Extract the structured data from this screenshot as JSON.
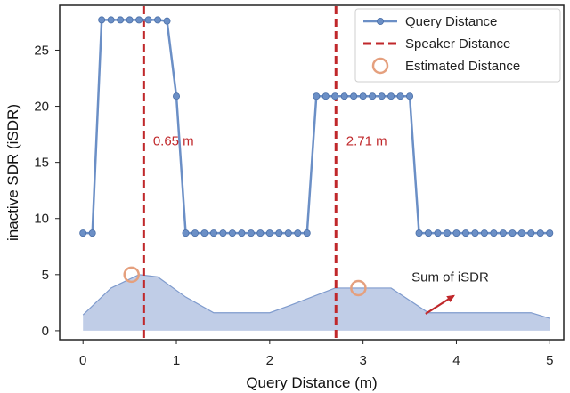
{
  "chart_data": {
    "type": "line",
    "title": "",
    "xlabel": "Query Distance (m)",
    "ylabel": "inactive SDR (iSDR)",
    "xlim": [
      -0.25,
      5.15
    ],
    "ylim": [
      -0.8,
      29
    ],
    "xticks": [
      0,
      1,
      2,
      3,
      4,
      5
    ],
    "yticks": [
      0,
      5,
      10,
      15,
      20,
      25
    ],
    "grid": false,
    "legend_position": "top-right",
    "colors": {
      "query": "#6b8fc6",
      "speaker": "#c0282b",
      "estimated": "#e5a07e",
      "sum_fill": "#b9c8e4",
      "sum_line": "#7f9bcd"
    },
    "series": [
      {
        "name": "Query Distance",
        "style": "line-marker",
        "x": [
          0.0,
          0.1,
          0.2,
          0.3,
          0.4,
          0.5,
          0.6,
          0.7,
          0.8,
          0.9,
          1.0,
          1.1,
          1.2,
          1.3,
          1.4,
          1.5,
          1.6,
          1.7,
          1.8,
          1.9,
          2.0,
          2.1,
          2.2,
          2.3,
          2.4,
          2.5,
          2.6,
          2.7,
          2.8,
          2.9,
          3.0,
          3.1,
          3.2,
          3.3,
          3.4,
          3.5,
          3.6,
          3.7,
          3.8,
          3.9,
          4.0,
          4.1,
          4.2,
          4.3,
          4.4,
          4.5,
          4.6,
          4.7,
          4.8,
          4.9,
          5.0
        ],
        "y": [
          8.7,
          8.7,
          27.7,
          27.7,
          27.7,
          27.7,
          27.7,
          27.7,
          27.7,
          27.6,
          20.9,
          8.7,
          8.7,
          8.7,
          8.7,
          8.7,
          8.7,
          8.7,
          8.7,
          8.7,
          8.7,
          8.7,
          8.7,
          8.7,
          8.7,
          20.9,
          20.9,
          20.9,
          20.9,
          20.9,
          20.9,
          20.9,
          20.9,
          20.9,
          20.9,
          20.9,
          8.7,
          8.7,
          8.7,
          8.7,
          8.7,
          8.7,
          8.7,
          8.7,
          8.7,
          8.7,
          8.7,
          8.7,
          8.7,
          8.7,
          8.7
        ]
      },
      {
        "name": "Speaker Distance",
        "style": "vline-dashed",
        "x": [
          0.65,
          2.71
        ]
      },
      {
        "name": "Estimated Distance",
        "style": "open-circle",
        "x": [
          0.52,
          2.95
        ],
        "y": [
          5.0,
          3.8
        ]
      },
      {
        "name": "Sum of iSDR",
        "style": "area",
        "x": [
          0.0,
          0.3,
          0.6,
          0.8,
          1.1,
          1.4,
          1.5,
          2.0,
          2.2,
          2.7,
          3.0,
          3.3,
          3.7,
          4.0,
          4.8,
          5.0
        ],
        "y": [
          1.4,
          3.8,
          5.0,
          4.8,
          3.0,
          1.6,
          1.6,
          1.6,
          2.2,
          3.8,
          3.8,
          3.8,
          1.6,
          1.6,
          1.6,
          1.1
        ]
      }
    ],
    "legend": {
      "entries": [
        "Query Distance",
        "Speaker Distance",
        "Estimated Distance"
      ]
    },
    "annotations": [
      {
        "text": "0.65  m",
        "x": 0.75,
        "y": 16.5,
        "color": "red"
      },
      {
        "text": "2.71  m",
        "x": 2.82,
        "y": 16.5,
        "color": "red"
      },
      {
        "text": "Sum of iSDR",
        "x": 3.52,
        "y": 4.4,
        "color": "dark",
        "arrow_from": [
          3.67,
          1.5
        ],
        "arrow_to": [
          3.97,
          3.1
        ]
      }
    ]
  }
}
